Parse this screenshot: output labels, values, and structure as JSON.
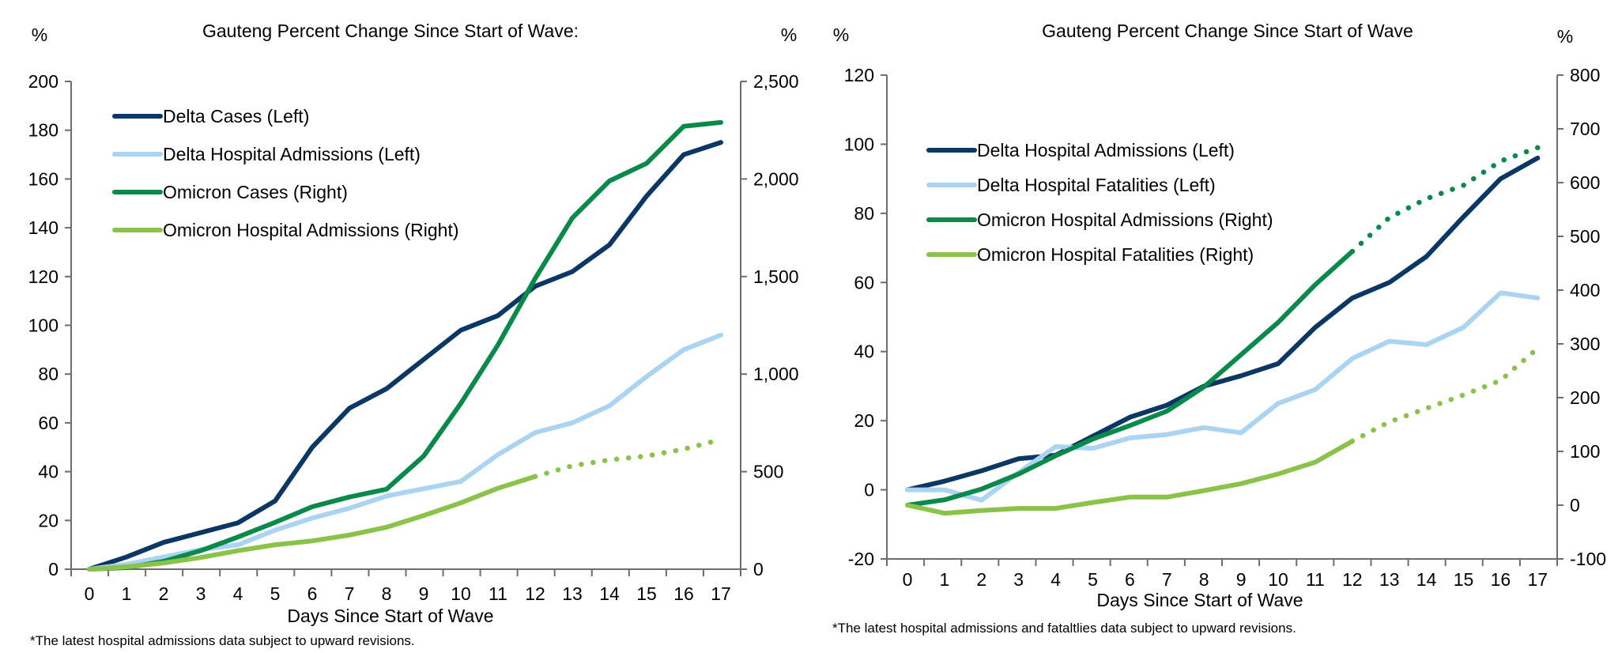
{
  "colors": {
    "delta_dark": "#0b3764",
    "delta_light": "#abd4f2",
    "omicron_dark": "#0a8a4a",
    "omicron_light": "#8bc34a",
    "axis": "#6d6d6d"
  },
  "chart_data": [
    {
      "type": "line",
      "title": "Gauteng Percent Change Since Start of Wave:",
      "xlabel": "Days Since Start of Wave",
      "ylabel_left": "%",
      "ylabel_right": "%",
      "footnote": "*The latest hospital admissions data subject to upward revisions.",
      "x": [
        0,
        1,
        2,
        3,
        4,
        5,
        6,
        7,
        8,
        9,
        10,
        11,
        12,
        13,
        14,
        15,
        16,
        17
      ],
      "x_tick_labels": [
        "0",
        "1",
        "2",
        "3",
        "4",
        "5",
        "6",
        "7",
        "8",
        "9",
        "10",
        "11",
        "12",
        "13",
        "14",
        "15",
        "16",
        "17"
      ],
      "ylim_left": [
        0,
        200
      ],
      "ylim_right": [
        0,
        2500
      ],
      "y_ticks_left": [
        "0",
        "20",
        "40",
        "60",
        "80",
        "100",
        "120",
        "140",
        "160",
        "180",
        "200"
      ],
      "y_ticks_right": [
        "0",
        "500",
        "1,000",
        "1,500",
        "2,000",
        "2,500"
      ],
      "legend_position": "top-left",
      "grid": false,
      "series": [
        {
          "name": "Delta Cases (Left)",
          "axis": "left",
          "color_key": "delta_dark",
          "values": [
            0,
            5,
            11,
            15,
            19,
            28,
            50,
            66,
            74,
            86,
            98,
            104,
            116,
            122,
            133,
            153,
            170,
            175
          ],
          "solid_until": 17
        },
        {
          "name": "Delta Hospital Admissions (Left)",
          "axis": "left",
          "color_key": "delta_light",
          "values": [
            0,
            2,
            5,
            8,
            10,
            16,
            21,
            25,
            30,
            33,
            36,
            47,
            56,
            60,
            67,
            79,
            90,
            96
          ],
          "solid_until": 17
        },
        {
          "name": "Omicron Cases (Right)",
          "axis": "right",
          "color_key": "omicron_dark",
          "values": [
            0,
            8,
            40,
            95,
            165,
            240,
            320,
            370,
            410,
            580,
            850,
            1150,
            1490,
            1800,
            1990,
            2080,
            2270,
            2290
          ],
          "solid_until": 17
        },
        {
          "name": "Omicron Hospital Admissions (Right)",
          "axis": "right",
          "color_key": "omicron_light",
          "values": [
            0,
            12,
            32,
            60,
            95,
            125,
            145,
            175,
            215,
            275,
            340,
            415,
            475,
            530,
            560,
            580,
            615,
            665
          ],
          "solid_until": 12
        }
      ]
    },
    {
      "type": "line",
      "title": "Gauteng Percent Change Since Start of Wave",
      "xlabel": "Days Since Start of Wave",
      "ylabel_left": "%",
      "ylabel_right": "%",
      "footnote": "*The latest hospital admissions and fataltlies data subject to upward revisions.",
      "x": [
        0,
        1,
        2,
        3,
        4,
        5,
        6,
        7,
        8,
        9,
        10,
        11,
        12,
        13,
        14,
        15,
        16,
        17
      ],
      "x_tick_labels": [
        "0",
        "1",
        "2",
        "3",
        "4",
        "5",
        "6",
        "7",
        "8",
        "9",
        "10",
        "11",
        "12",
        "13",
        "14",
        "15",
        "16",
        "17"
      ],
      "ylim_left": [
        -20,
        120
      ],
      "ylim_right": [
        -100,
        800
      ],
      "y_ticks_left": [
        "-20",
        "0",
        "20",
        "40",
        "60",
        "80",
        "100",
        "120"
      ],
      "y_ticks_right": [
        "-100",
        "0",
        "100",
        "200",
        "300",
        "400",
        "500",
        "600",
        "700",
        "800"
      ],
      "legend_position": "top-left",
      "grid": false,
      "series": [
        {
          "name": "Delta Hospital Admissions (Left)",
          "axis": "left",
          "color_key": "delta_dark",
          "values": [
            0,
            2.5,
            5.5,
            9,
            10,
            15.5,
            21,
            24.5,
            30,
            33,
            36.5,
            47,
            55.5,
            60,
            67.5,
            79,
            90,
            96
          ],
          "solid_until": 17
        },
        {
          "name": "Delta Hospital Fatalities (Left)",
          "axis": "left",
          "color_key": "delta_light",
          "values": [
            0,
            0,
            -3,
            5,
            12.5,
            12,
            15,
            16,
            18,
            16.5,
            25,
            29,
            38,
            43,
            42,
            47,
            57,
            55.5
          ],
          "solid_until": 17
        },
        {
          "name": "Omicron Hospital Admissions (Right)",
          "axis": "right",
          "color_key": "omicron_dark",
          "values": [
            0,
            10,
            30,
            58,
            92,
            123,
            148,
            175,
            220,
            280,
            340,
            410,
            472,
            535,
            570,
            595,
            640,
            665
          ],
          "solid_until": 12
        },
        {
          "name": "Omicron Hospital Fatalities (Right)",
          "axis": "right",
          "color_key": "omicron_light",
          "values": [
            0,
            -15,
            -10,
            -6,
            -6,
            5,
            15,
            15,
            27,
            40,
            58,
            80,
            119,
            155,
            180,
            205,
            232,
            292
          ],
          "solid_until": 12
        }
      ]
    }
  ]
}
